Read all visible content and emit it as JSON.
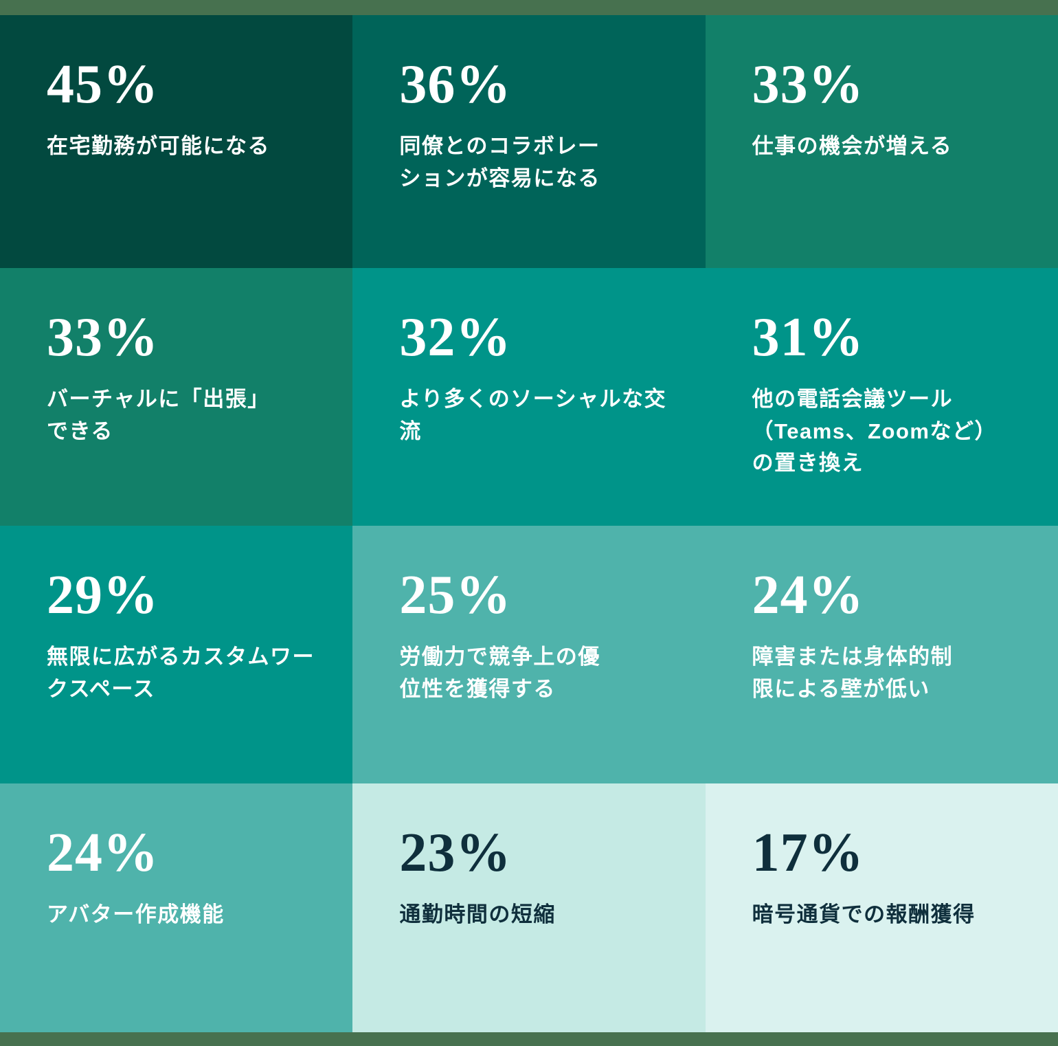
{
  "chart_data": {
    "type": "table",
    "title": "",
    "unit": "%",
    "layout": "4 rows x 3 columns of stat tiles, background shade coded from dark green (high %) to light mint (low %); sage green strips at top and bottom edges",
    "categories": [
      "在宅勤務が可能になる",
      "同僚とのコラボレーションが容易になる",
      "仕事の機会が増える",
      "バーチャルに「出張」できる",
      "より多くのソーシャルな交流",
      "他の電話会議ツール（Teams、Zoomなど）の置き換え",
      "無限に広がるカスタムワークスペース",
      "労働力で競争上の優位性を獲得する",
      "障害または身体的制限による壁が低い",
      "アバター作成機能",
      "通勤時間の短縮",
      "暗号通貨での報酬獲得"
    ],
    "values": [
      45,
      36,
      33,
      33,
      32,
      31,
      29,
      25,
      24,
      24,
      23,
      17
    ]
  },
  "colors": {
    "frame_strip": "#47714F",
    "text_light": "#FFFFFF",
    "text_dark": "#0F2F3C",
    "shade_45": "#02493F",
    "shade_36": "#006459",
    "shade_33": "#128069",
    "shade_32_29": "#009489",
    "shade_25_24": "#4FB3AB",
    "shade_23": "#C5EAE4",
    "shade_17": "#DAF2EF"
  },
  "tiles": [
    {
      "value_display": "45%",
      "label": "在宅勤務が可能になる",
      "bg": "#02493F",
      "fg": "#FFFFFF"
    },
    {
      "value_display": "36%",
      "label": "同僚とのコラボレー\nションが容易になる",
      "bg": "#006459",
      "fg": "#FFFFFF"
    },
    {
      "value_display": "33%",
      "label": "仕事の機会が増える",
      "bg": "#128069",
      "fg": "#FFFFFF"
    },
    {
      "value_display": "33%",
      "label": "バーチャルに「出張」\nできる",
      "bg": "#128069",
      "fg": "#FFFFFF"
    },
    {
      "value_display": "32%",
      "label": "より多くのソーシャルな交流",
      "bg": "#009489",
      "fg": "#FFFFFF"
    },
    {
      "value_display": "31%",
      "label": "他の電話会議ツール\n（Teams、Zoomなど）\nの置き換え",
      "bg": "#009489",
      "fg": "#FFFFFF"
    },
    {
      "value_display": "29%",
      "label": "無限に広がるカスタムワー\nクスペース",
      "bg": "#009489",
      "fg": "#FFFFFF"
    },
    {
      "value_display": "25%",
      "label": "労働力で競争上の優\n位性を獲得する",
      "bg": "#4FB3AB",
      "fg": "#FFFFFF"
    },
    {
      "value_display": "24%",
      "label": "障害または身体的制\n限による壁が低い",
      "bg": "#4FB3AB",
      "fg": "#FFFFFF"
    },
    {
      "value_display": "24%",
      "label": "アバター作成機能",
      "bg": "#4FB3AB",
      "fg": "#FFFFFF"
    },
    {
      "value_display": "23%",
      "label": "通勤時間の短縮",
      "bg": "#C5EAE4",
      "fg": "#0F2F3C"
    },
    {
      "value_display": "17%",
      "label": "暗号通貨での報酬獲得",
      "bg": "#DAF2EF",
      "fg": "#0F2F3C"
    }
  ]
}
